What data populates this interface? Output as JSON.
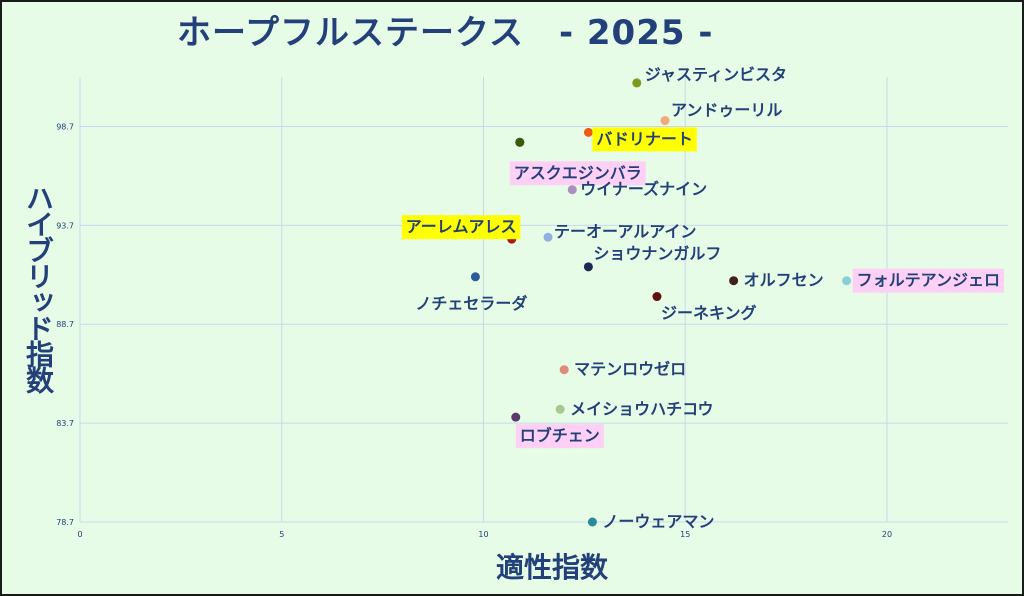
{
  "title": "ホープフルステークス　- 2025 -",
  "chart_data": {
    "type": "scatter",
    "title": "ホープフルステークス　- 2025 -",
    "xlabel": "適性指数",
    "ylabel": "ハイブリッド指数",
    "xlim": [
      0,
      23
    ],
    "ylim": [
      78.7,
      101.2
    ],
    "x_ticks": [
      "0",
      "5",
      "10",
      "15",
      "20"
    ],
    "y_ticks": [
      "78.7",
      "83.7",
      "88.7",
      "93.7",
      "98.7"
    ],
    "grid": true,
    "highlight_colors": {
      "yellow": "#ffff00",
      "pink": "#ffd0f5"
    },
    "points": [
      {
        "name": "ジャスティンビスタ",
        "x": 13.8,
        "y": 100.9,
        "color": "#7a9a20",
        "highlight": "none"
      },
      {
        "name": "アンドゥーリル",
        "x": 14.5,
        "y": 99.0,
        "color": "#f4a97a",
        "highlight": "none"
      },
      {
        "name": "バドリナート",
        "x": 12.6,
        "y": 98.4,
        "color": "#f05a10",
        "highlight": "yellow"
      },
      {
        "name": "",
        "x": 10.9,
        "y": 97.9,
        "color": "#3a5a10",
        "highlight": "none"
      },
      {
        "name": "アスクエジンバラ",
        "x": 10.9,
        "y": 97.9,
        "color": "#3a5a10",
        "highlight": "pink"
      },
      {
        "name": "ウイナーズナイン",
        "x": 12.2,
        "y": 95.5,
        "color": "#a890c0",
        "highlight": "none"
      },
      {
        "name": "テーオーアルアイン",
        "x": 11.6,
        "y": 93.1,
        "color": "#8fb0e0",
        "highlight": "none"
      },
      {
        "name": "アーレムアレス",
        "x": 10.7,
        "y": 93.0,
        "color": "#b01818",
        "highlight": "yellow"
      },
      {
        "name": "ショウナンガルフ",
        "x": 12.6,
        "y": 91.6,
        "color": "#1a2a50",
        "highlight": "none"
      },
      {
        "name": "ノチェセラーダ",
        "x": 9.8,
        "y": 91.1,
        "color": "#2a5a9a",
        "highlight": "none"
      },
      {
        "name": "オルフセン",
        "x": 16.2,
        "y": 90.9,
        "color": "#402020",
        "highlight": "none"
      },
      {
        "name": "フォルテアンジェロ",
        "x": 19.0,
        "y": 90.9,
        "color": "#8acfd8",
        "highlight": "pink"
      },
      {
        "name": "ジーネキング",
        "x": 14.3,
        "y": 90.1,
        "color": "#601010",
        "highlight": "none"
      },
      {
        "name": "マテンロウゼロ",
        "x": 12.0,
        "y": 86.4,
        "color": "#e08a7a",
        "highlight": "none"
      },
      {
        "name": "メイショウハチコウ",
        "x": 11.9,
        "y": 84.4,
        "color": "#a8c890",
        "highlight": "none"
      },
      {
        "name": "ロブチェン",
        "x": 10.8,
        "y": 84.0,
        "color": "#5a3a6a",
        "highlight": "pink"
      },
      {
        "name": "ノーウェアマン",
        "x": 12.7,
        "y": 78.7,
        "color": "#2a8a9a",
        "highlight": "none"
      }
    ]
  }
}
